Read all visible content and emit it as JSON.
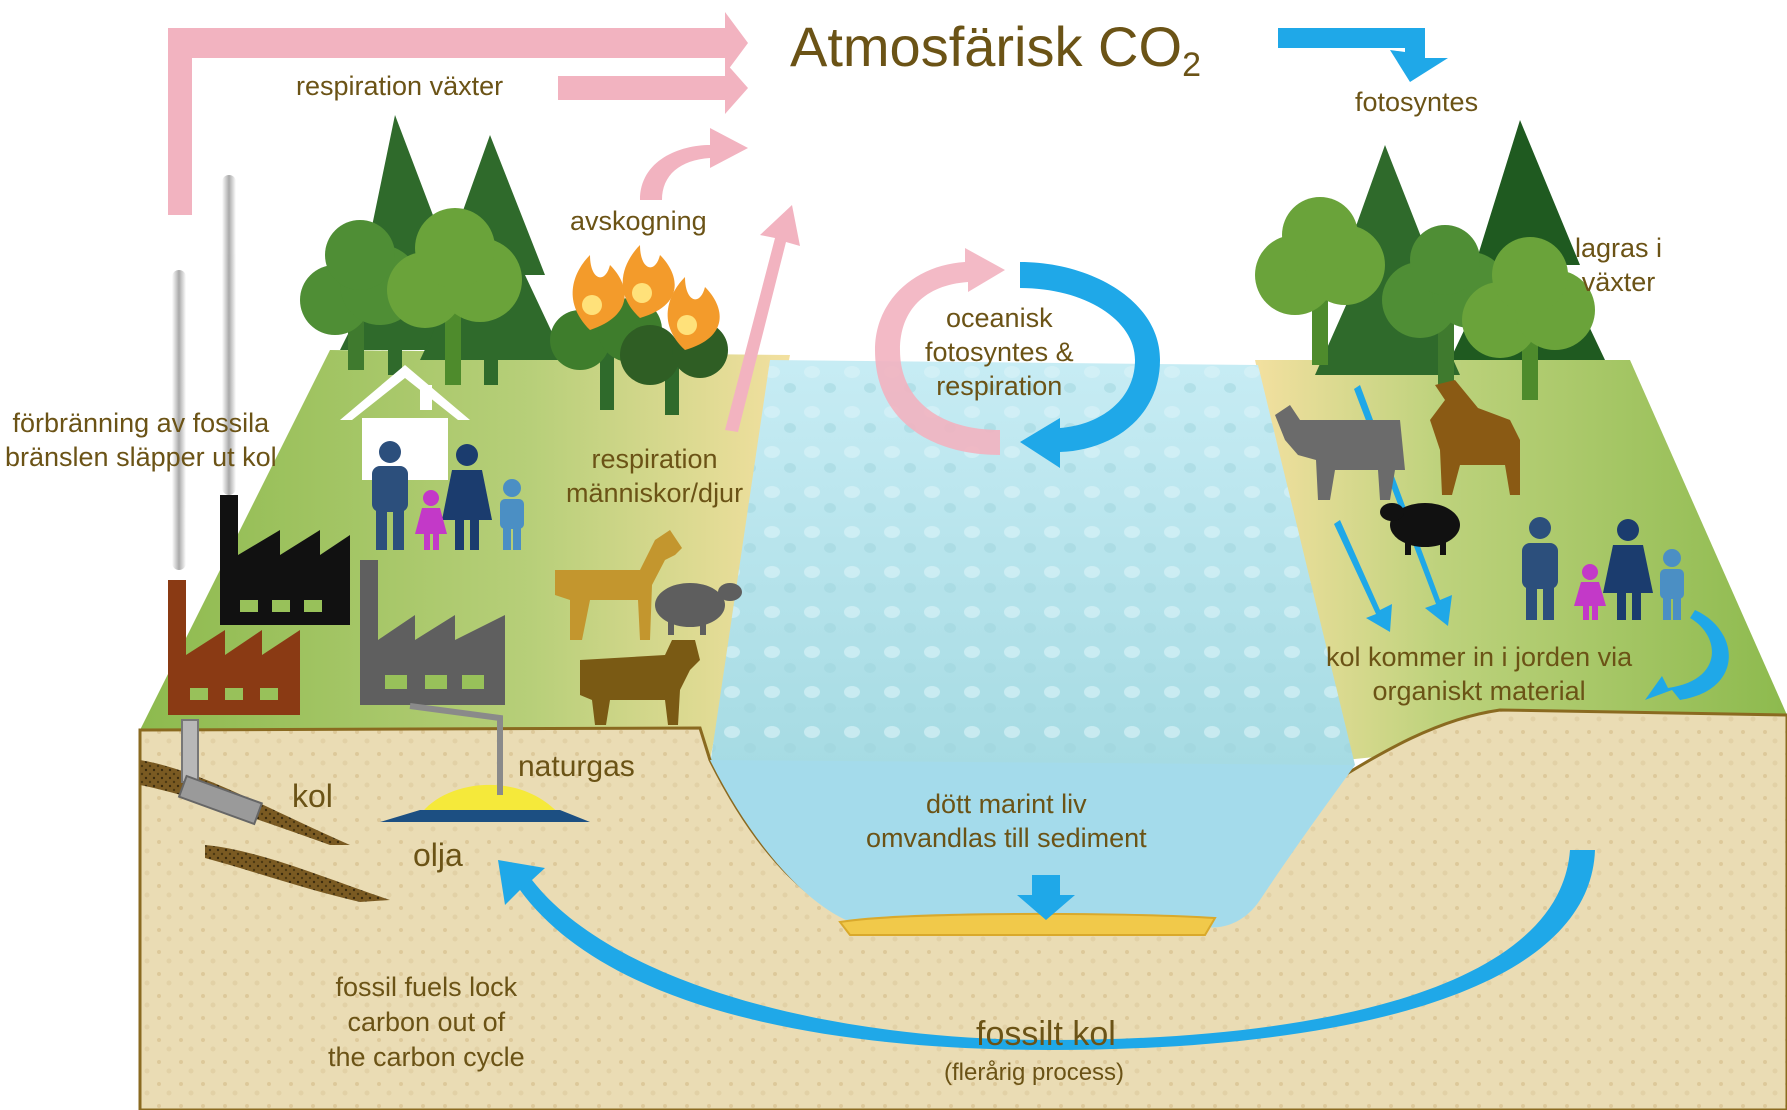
{
  "title": {
    "text": "Atmosfärisk CO",
    "subscript": "2"
  },
  "labels": {
    "respiration_plants": "respiration växter",
    "photosynthesis": "fotosyntes",
    "deforestation": "avskogning",
    "stored_in_plants_1": "lagras i",
    "stored_in_plants_2": "växter",
    "ocean_1": "oceanisk",
    "ocean_2": "fotosyntes &",
    "ocean_3": "respiration",
    "combustion_1": "förbränning av fossila",
    "combustion_2": "bränslen släpper ut kol",
    "resp_humans_1": "respiration",
    "resp_humans_2": "människor/djur",
    "soil_1": "kol kommer in i jorden via",
    "soil_2": "organiskt material",
    "natural_gas": "naturgas",
    "coal": "kol",
    "oil": "olja",
    "marine_1": "dött marint liv",
    "marine_2": "omvandlas till sediment",
    "lock_1": "fossil fuels lock",
    "lock_2": "carbon out of",
    "lock_3": "the carbon cycle",
    "fossil_carbon": "fossilt kol",
    "fossil_process": "(flerårig process)"
  },
  "colors": {
    "text": "#6b5316",
    "pink_arrow": "#f2b3c0",
    "blue_arrow": "#1fa8e8",
    "grass": "#98c15a",
    "soil": "#e8d7ad",
    "water": "#b3e2ec",
    "sea_bottom": "#9fd8ea",
    "tree_dark": "#2f6a2b",
    "tree_light": "#6aa33a"
  }
}
